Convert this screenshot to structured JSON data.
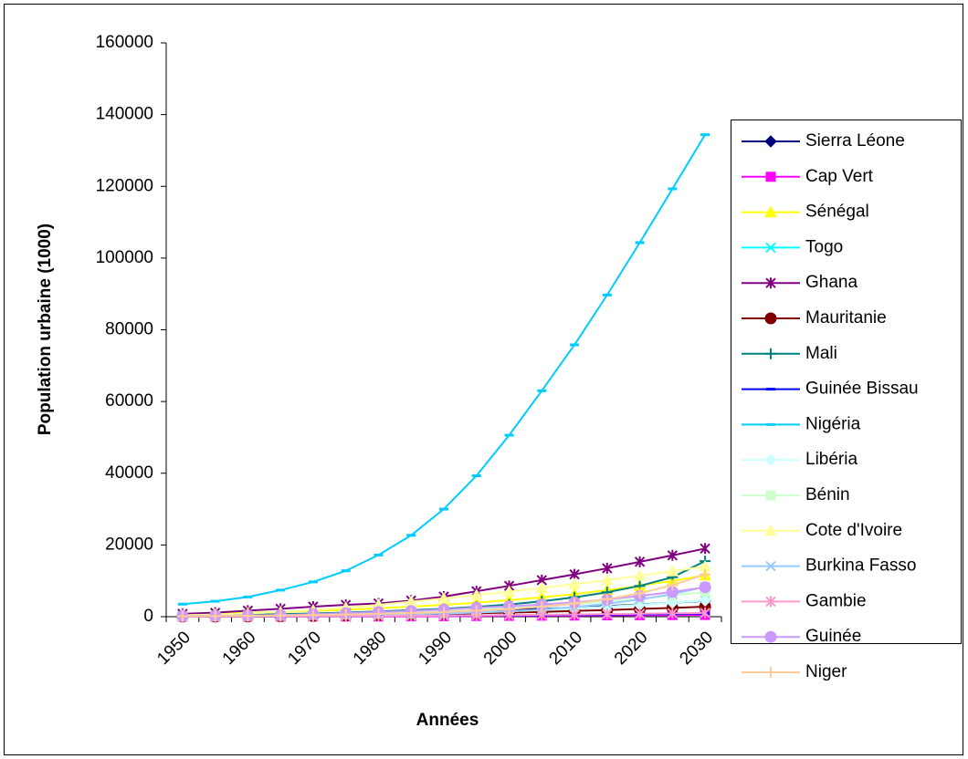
{
  "chart_data": {
    "type": "line",
    "y_label": "Population urbaine (1000)",
    "x_label": "Années",
    "categories": [
      "1950",
      null,
      "1960",
      null,
      "1970",
      null,
      "1980",
      null,
      "1990",
      null,
      "2000",
      null,
      "2010",
      null,
      "2020",
      null,
      "2030"
    ],
    "ylim": [
      0,
      160000
    ],
    "yticks": [
      0,
      20000,
      40000,
      60000,
      80000,
      100000,
      120000,
      140000,
      160000
    ],
    "legend": "right",
    "series": [
      {
        "name": "Sierra Léone",
        "color": "#000080",
        "marker": "diamond",
        "values": [
          200,
          260,
          340,
          450,
          600,
          780,
          1000,
          1250,
          1500,
          1650,
          1900,
          2200,
          2550,
          2950,
          3400,
          3900,
          4400
        ]
      },
      {
        "name": "Cap Vert",
        "color": "#FF00FF",
        "marker": "square",
        "values": [
          20,
          25,
          30,
          40,
          50,
          60,
          70,
          100,
          140,
          190,
          240,
          290,
          330,
          380,
          420,
          460,
          500
        ]
      },
      {
        "name": "Sénégal",
        "color": "#FFFF00",
        "marker": "triangle",
        "values": [
          700,
          880,
          1080,
          1300,
          1600,
          1950,
          2350,
          2800,
          3300,
          3900,
          4600,
          5400,
          6300,
          7400,
          8600,
          10000,
          11500
        ]
      },
      {
        "name": "Togo",
        "color": "#00FFFF",
        "marker": "x",
        "values": [
          60,
          100,
          140,
          200,
          290,
          400,
          560,
          750,
          950,
          1200,
          1500,
          1850,
          2300,
          2800,
          3300,
          3900,
          4500
        ]
      },
      {
        "name": "Ghana",
        "color": "#800080",
        "marker": "star",
        "values": [
          800,
          1100,
          1700,
          2200,
          2800,
          3300,
          3700,
          4500,
          5600,
          7100,
          8600,
          10200,
          11800,
          13500,
          15300,
          17100,
          19000
        ]
      },
      {
        "name": "Mauritanie",
        "color": "#800000",
        "marker": "circle",
        "values": [
          20,
          40,
          60,
          110,
          180,
          300,
          450,
          620,
          800,
          950,
          1150,
          1350,
          1600,
          1850,
          2150,
          2450,
          2800
        ]
      },
      {
        "name": "Mali",
        "color": "#008080",
        "marker": "plus",
        "values": [
          300,
          400,
          530,
          690,
          900,
          1150,
          1450,
          1800,
          2200,
          2750,
          3400,
          4300,
          5400,
          6800,
          8600,
          11000,
          15500
        ]
      },
      {
        "name": "Guinée Bissau",
        "color": "#0000FF",
        "marker": "dash",
        "values": [
          50,
          60,
          70,
          90,
          110,
          150,
          190,
          240,
          290,
          340,
          400,
          460,
          530,
          600,
          680,
          770,
          870
        ]
      },
      {
        "name": "Nigéria",
        "color": "#00CCFF",
        "marker": "dash",
        "values": [
          3500,
          4300,
          5500,
          7400,
          9700,
          12800,
          17200,
          22700,
          30000,
          39300,
          50600,
          63000,
          75800,
          89700,
          104300,
          119300,
          134400
        ]
      },
      {
        "name": "Libéria",
        "color": "#CCFFFF",
        "marker": "diamond",
        "values": [
          120,
          170,
          240,
          330,
          450,
          600,
          800,
          1050,
          1100,
          1300,
          1500,
          1850,
          2300,
          2800,
          3300,
          3900,
          4500
        ]
      },
      {
        "name": "Bénin",
        "color": "#CCFFCC",
        "marker": "square",
        "values": [
          100,
          150,
          200,
          300,
          500,
          750,
          1000,
          1300,
          1600,
          1950,
          2400,
          2900,
          3500,
          4200,
          5000,
          5900,
          6900
        ]
      },
      {
        "name": "Cote d'Ivoire",
        "color": "#FFFF99",
        "marker": "triangle",
        "values": [
          400,
          600,
          900,
          1300,
          1800,
          2500,
          3300,
          4200,
          5100,
          6000,
          7000,
          8000,
          9100,
          10200,
          11400,
          12700,
          14000
        ]
      },
      {
        "name": "Burkina Fasso",
        "color": "#99CCFF",
        "marker": "x",
        "values": [
          120,
          150,
          200,
          250,
          310,
          400,
          530,
          700,
          900,
          1150,
          1500,
          2000,
          2700,
          3600,
          4800,
          6300,
          8300
        ]
      },
      {
        "name": "Gambie",
        "color": "#FF99CC",
        "marker": "star",
        "values": [
          30,
          50,
          70,
          100,
          130,
          160,
          200,
          250,
          300,
          380,
          450,
          530,
          620,
          720,
          820,
          930,
          1050
        ]
      },
      {
        "name": "Guinée",
        "color": "#CC99FF",
        "marker": "circle",
        "values": [
          180,
          250,
          330,
          450,
          700,
          1000,
          1300,
          1600,
          2000,
          2500,
          2900,
          3400,
          4000,
          4800,
          5800,
          6900,
          8200
        ]
      },
      {
        "name": "Niger",
        "color": "#FFCC99",
        "marker": "plus",
        "values": [
          130,
          170,
          230,
          320,
          430,
          600,
          800,
          1000,
          1300,
          1700,
          2100,
          2800,
          3700,
          4900,
          6500,
          8800,
          11800
        ]
      }
    ]
  }
}
